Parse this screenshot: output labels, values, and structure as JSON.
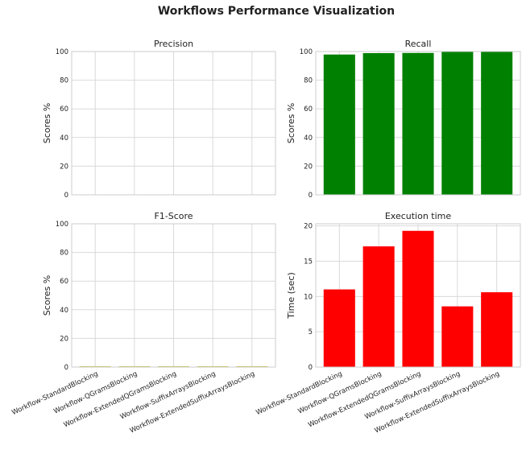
{
  "figure": {
    "title": "Workflows Performance Visualization"
  },
  "chart_data": [
    {
      "type": "bar",
      "title": "Precision",
      "xlabel": "",
      "ylabel": "Scores %",
      "ylim": [
        0,
        100
      ],
      "yticks": [
        0,
        20,
        40,
        60,
        80,
        100
      ],
      "categories": [
        "Workflow-StandardBlocking",
        "Workflow-QGramsBlocking",
        "Workflow-ExtendedQGramsBlocking",
        "Workflow-SuffixArraysBlocking",
        "Workflow-ExtendedSuffixArraysBlocking"
      ],
      "values": [
        0,
        0,
        0,
        0,
        0
      ],
      "color": "#1f77b4",
      "show_xticklabels": false,
      "grid": true
    },
    {
      "type": "bar",
      "title": "Recall",
      "xlabel": "",
      "ylabel": "Scores %",
      "ylim": [
        0,
        100
      ],
      "yticks": [
        0,
        20,
        40,
        60,
        80,
        100
      ],
      "categories": [
        "Workflow-StandardBlocking",
        "Workflow-QGramsBlocking",
        "Workflow-ExtendedQGramsBlocking",
        "Workflow-SuffixArraysBlocking",
        "Workflow-ExtendedSuffixArraysBlocking"
      ],
      "values": [
        97.9,
        98.9,
        99.0,
        99.8,
        99.8
      ],
      "color": "#008000",
      "show_xticklabels": false,
      "grid": true
    },
    {
      "type": "bar",
      "title": "F1-Score",
      "xlabel": "",
      "ylabel": "Scores %",
      "ylim": [
        0,
        100
      ],
      "yticks": [
        0,
        20,
        40,
        60,
        80,
        100
      ],
      "categories": [
        "Workflow-StandardBlocking",
        "Workflow-QGramsBlocking",
        "Workflow-ExtendedQGramsBlocking",
        "Workflow-SuffixArraysBlocking",
        "Workflow-ExtendedSuffixArraysBlocking"
      ],
      "values": [
        0.3,
        0.3,
        0.3,
        0.3,
        0.3
      ],
      "color": "#bcbd22",
      "show_xticklabels": true,
      "grid": true
    },
    {
      "type": "bar",
      "title": "Execution time",
      "xlabel": "",
      "ylabel": "Time (sec)",
      "ylim": [
        0,
        20.3
      ],
      "yticks": [
        0,
        5,
        10,
        15,
        20
      ],
      "categories": [
        "Workflow-StandardBlocking",
        "Workflow-QGramsBlocking",
        "Workflow-ExtendedQGramsBlocking",
        "Workflow-SuffixArraysBlocking",
        "Workflow-ExtendedSuffixArraysBlocking"
      ],
      "values": [
        11.0,
        17.1,
        19.3,
        8.6,
        10.6
      ],
      "color": "#ff0000",
      "show_xticklabels": true,
      "grid": true
    }
  ]
}
